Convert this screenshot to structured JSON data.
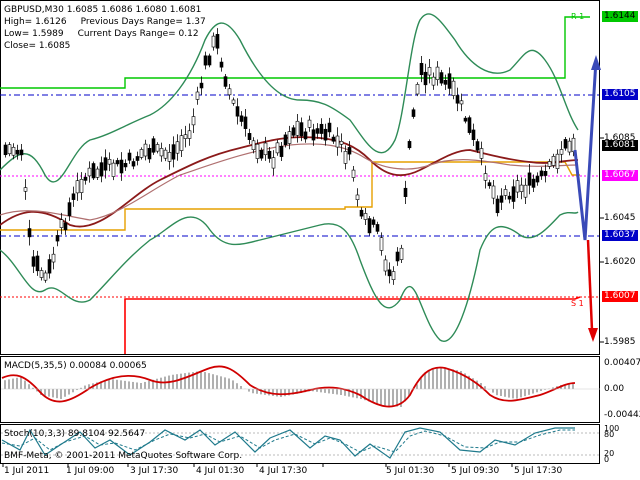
{
  "header": {
    "symbol_line": "GBPUSD,M30  1.6085 1.6086 1.6080 1.6081",
    "high": "High= 1.6126",
    "prev_range": "Previous Days Range= 1.37",
    "low": "Low= 1.5989",
    "curr_range": "Current Days Range= 0.12",
    "close": "Close= 1.6085"
  },
  "price_axis": {
    "ticks": [
      "1.6085",
      "1.6045",
      "1.6020",
      "1.5985"
    ],
    "tags": [
      {
        "label": "1.6144",
        "bg": "#00c800",
        "fg": "#000000"
      },
      {
        "label": "1.6105",
        "bg": "#0000c8",
        "fg": "#ffffff"
      },
      {
        "label": "1.6081",
        "bg": "#000000",
        "fg": "#ffffff"
      },
      {
        "label": "1.6067",
        "bg": "#ff00ff",
        "fg": "#ffffff"
      },
      {
        "label": "1.6037",
        "bg": "#0000c8",
        "fg": "#ffffff"
      },
      {
        "label": "1.6007",
        "bg": "#ff0000",
        "fg": "#ffffff"
      }
    ]
  },
  "pivot_labels": {
    "r1": "R 1",
    "s1": "S 1"
  },
  "macd": {
    "title": "MACD(5,35,5) 0.00084 0.00065",
    "ticks": [
      "0.00407",
      "0.00",
      "-0.00442"
    ]
  },
  "stoch": {
    "title": "Stoch(10,3,3) 89.8104 92.5647",
    "ticks": [
      "100",
      "80",
      "20",
      "0"
    ]
  },
  "time_axis": [
    "1 Jul 2011",
    "1 Jul 09:00",
    "3 Jul 17:30",
    "4 Jul 01:30",
    "4 Jul 17:30",
    "5 Jul 01:30",
    "5 Jul 09:30",
    "5 Jul 17:30"
  ],
  "copyright": "BMF-Meta, © 2001-2011 MetaQuotes Software Corp.",
  "colors": {
    "candles": "#000000",
    "bollinger": "#2e8b57",
    "ma": "#8b1a1a",
    "pivot_r1": "#00c800",
    "pivot_s1": "#ff0000",
    "pivot_p": "#e6a000",
    "macd_signal": "#d00000",
    "macd_hist": "#b0b0b0",
    "stoch_main": "#1f7a8c",
    "forecast": "#3a4ab8"
  }
}
